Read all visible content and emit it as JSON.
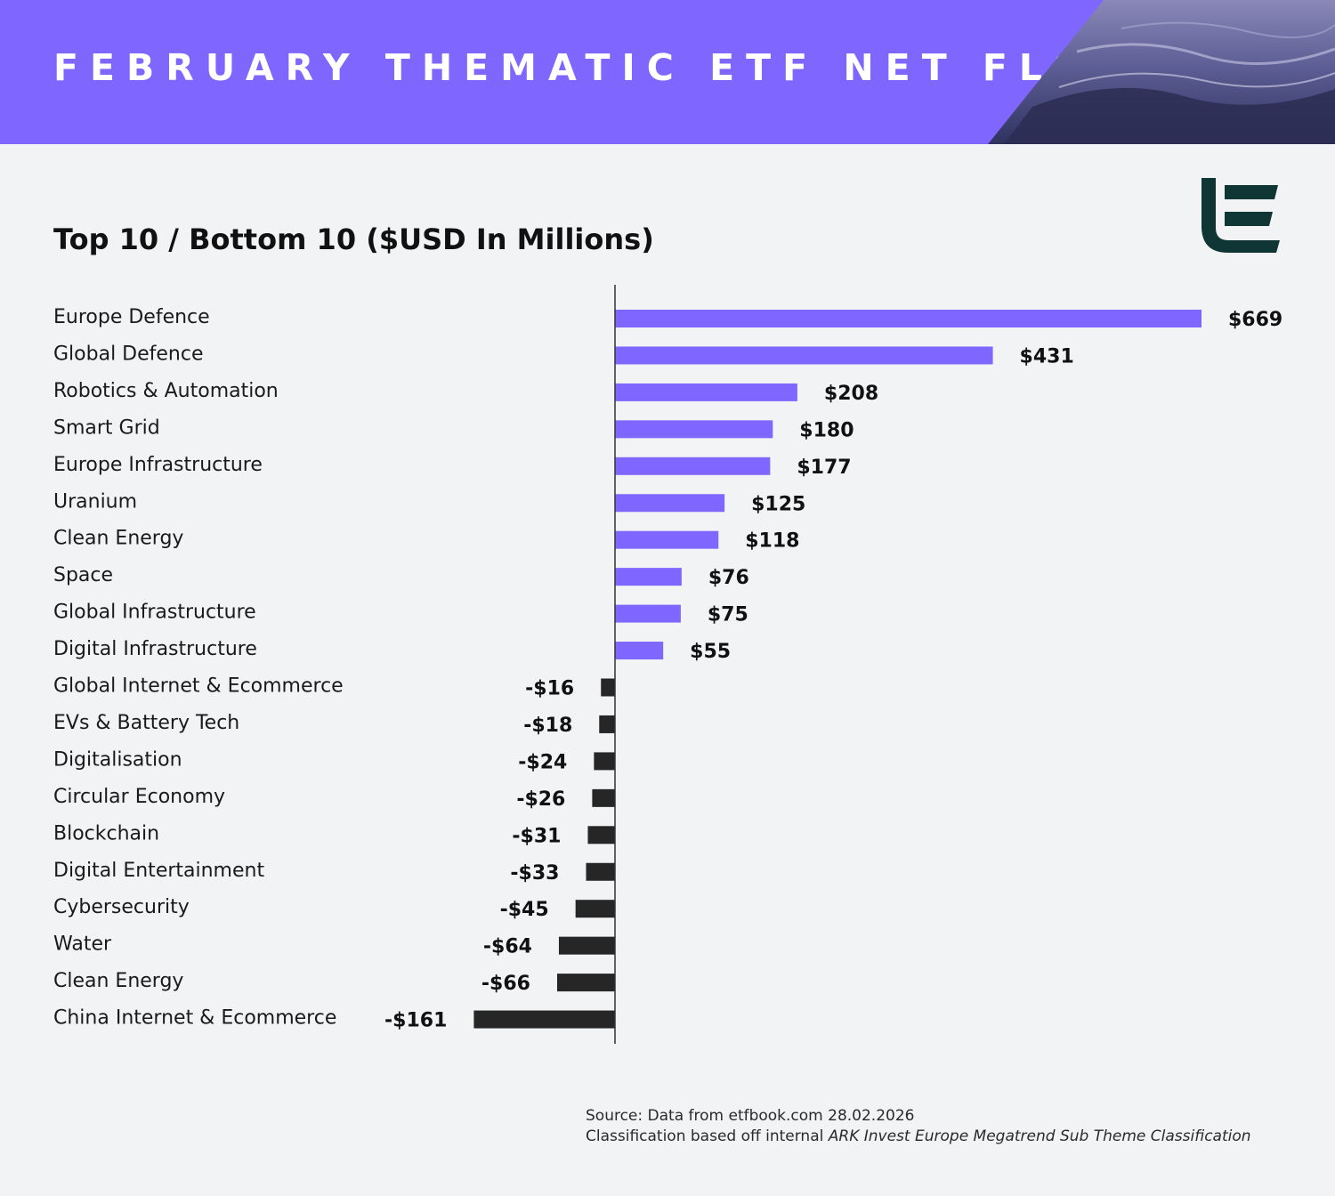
{
  "header": {
    "title": "FEBRUARY THEMATIC ETF NET FLOWS"
  },
  "subtitle": "Top 10 / Bottom 10 ($USD In Millions)",
  "colors": {
    "banner": "#7f66ff",
    "positive_bar": "#7f66ff",
    "negative_bar": "#262626",
    "logo": "#0f3535"
  },
  "footer": {
    "source": "Source: Data from etfbook.com 28.02.2026",
    "classification_prefix": "Classification based off internal ",
    "classification_name": "ARK Invest Europe Megatrend Sub Theme Classification"
  },
  "chart_data": {
    "type": "bar",
    "orientation": "horizontal",
    "title": "Top 10 / Bottom 10 ($USD In Millions)",
    "unit": "$USD millions",
    "categories": [
      "Europe Defence",
      "Global Defence",
      "Robotics & Automation",
      "Smart Grid",
      "Europe Infrastructure",
      "Uranium",
      "Clean Energy",
      "Space",
      "Global Infrastructure",
      "Digital Infrastructure",
      "Global Internet & Ecommerce",
      "EVs & Battery Tech",
      "Digitalisation",
      "Circular Economy",
      "Blockchain",
      "Digital Entertainment",
      "Cybersecurity",
      "Water",
      "Clean Energy",
      "China Internet & Ecommerce"
    ],
    "values": [
      669,
      431,
      208,
      180,
      177,
      125,
      118,
      76,
      75,
      55,
      -16,
      -18,
      -24,
      -26,
      -31,
      -33,
      -45,
      -64,
      -66,
      -161
    ],
    "value_labels": [
      "$669",
      "$431",
      "$208",
      "$180",
      "$177",
      "$125",
      "$118",
      "$76",
      "$75",
      "$55",
      "-$16",
      "-$18",
      "-$24",
      "-$26",
      "-$31",
      "-$33",
      "-$45",
      "-$64",
      "-$66",
      "-$161"
    ],
    "xlim": [
      -161,
      669
    ],
    "grid": false,
    "legend": "none"
  }
}
